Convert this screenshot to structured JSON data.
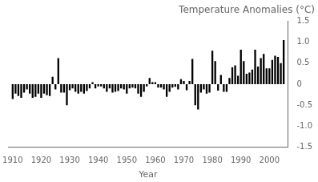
{
  "chart_data": {
    "type": "bar",
    "title": "Temperature Anomalies (°C)",
    "xlabel": "Year",
    "x": [
      1910,
      1911,
      1912,
      1913,
      1914,
      1915,
      1916,
      1917,
      1918,
      1919,
      1920,
      1921,
      1922,
      1923,
      1924,
      1925,
      1926,
      1927,
      1928,
      1929,
      1930,
      1931,
      1932,
      1933,
      1934,
      1935,
      1936,
      1937,
      1938,
      1939,
      1940,
      1941,
      1942,
      1943,
      1944,
      1945,
      1946,
      1947,
      1948,
      1949,
      1950,
      1951,
      1952,
      1953,
      1954,
      1955,
      1956,
      1957,
      1958,
      1959,
      1960,
      1961,
      1962,
      1963,
      1964,
      1965,
      1966,
      1967,
      1968,
      1969,
      1970,
      1971,
      1972,
      1973,
      1974,
      1975,
      1976,
      1977,
      1978,
      1979,
      1980,
      1981,
      1982,
      1983,
      1984,
      1985,
      1986,
      1987,
      1988,
      1989,
      1990,
      1991,
      1992,
      1993,
      1994,
      1995,
      1996,
      1997,
      1998,
      1999,
      2000,
      2001,
      2002,
      2003,
      2004,
      2005
    ],
    "values": [
      -0.35,
      -0.22,
      -0.28,
      -0.32,
      -0.2,
      -0.12,
      -0.22,
      -0.32,
      -0.3,
      -0.22,
      -0.32,
      -0.22,
      -0.26,
      -0.28,
      0.18,
      -0.12,
      0.62,
      -0.2,
      -0.2,
      -0.5,
      -0.14,
      -0.1,
      -0.18,
      -0.22,
      -0.18,
      -0.22,
      -0.16,
      -0.1,
      0.05,
      -0.1,
      -0.05,
      -0.05,
      -0.1,
      -0.18,
      -0.1,
      -0.2,
      -0.18,
      -0.16,
      -0.1,
      -0.12,
      -0.22,
      -0.1,
      -0.08,
      -0.1,
      -0.22,
      -0.3,
      -0.18,
      -0.05,
      0.15,
      0.05,
      0.05,
      -0.08,
      -0.08,
      -0.12,
      -0.3,
      -0.18,
      -0.08,
      -0.06,
      -0.12,
      0.12,
      0.08,
      -0.14,
      0.08,
      0.6,
      -0.5,
      -0.6,
      -0.2,
      -0.12,
      -0.22,
      -0.2,
      0.8,
      0.55,
      -0.15,
      0.22,
      -0.18,
      -0.18,
      0.15,
      0.4,
      0.45,
      0.2,
      0.82,
      0.55,
      0.25,
      0.28,
      0.35,
      0.82,
      0.42,
      0.62,
      0.72,
      0.38,
      0.38,
      0.58,
      0.68,
      0.65,
      0.5,
      1.05
    ],
    "color": "#000000",
    "xlim": [
      1908.5,
      2006.5
    ],
    "xticks": [
      1910,
      1920,
      1930,
      1940,
      1950,
      1960,
      1970,
      1980,
      1990,
      2000
    ],
    "ylim": [
      -1.5,
      1.5
    ],
    "yticks": [
      -1.5,
      {
        "value": -1.0,
        "label": "-1.0"
      },
      -0.5,
      0,
      0.5,
      {
        "value": 1.0,
        "label": "1.0"
      },
      1.5
    ],
    "grid": false
  }
}
